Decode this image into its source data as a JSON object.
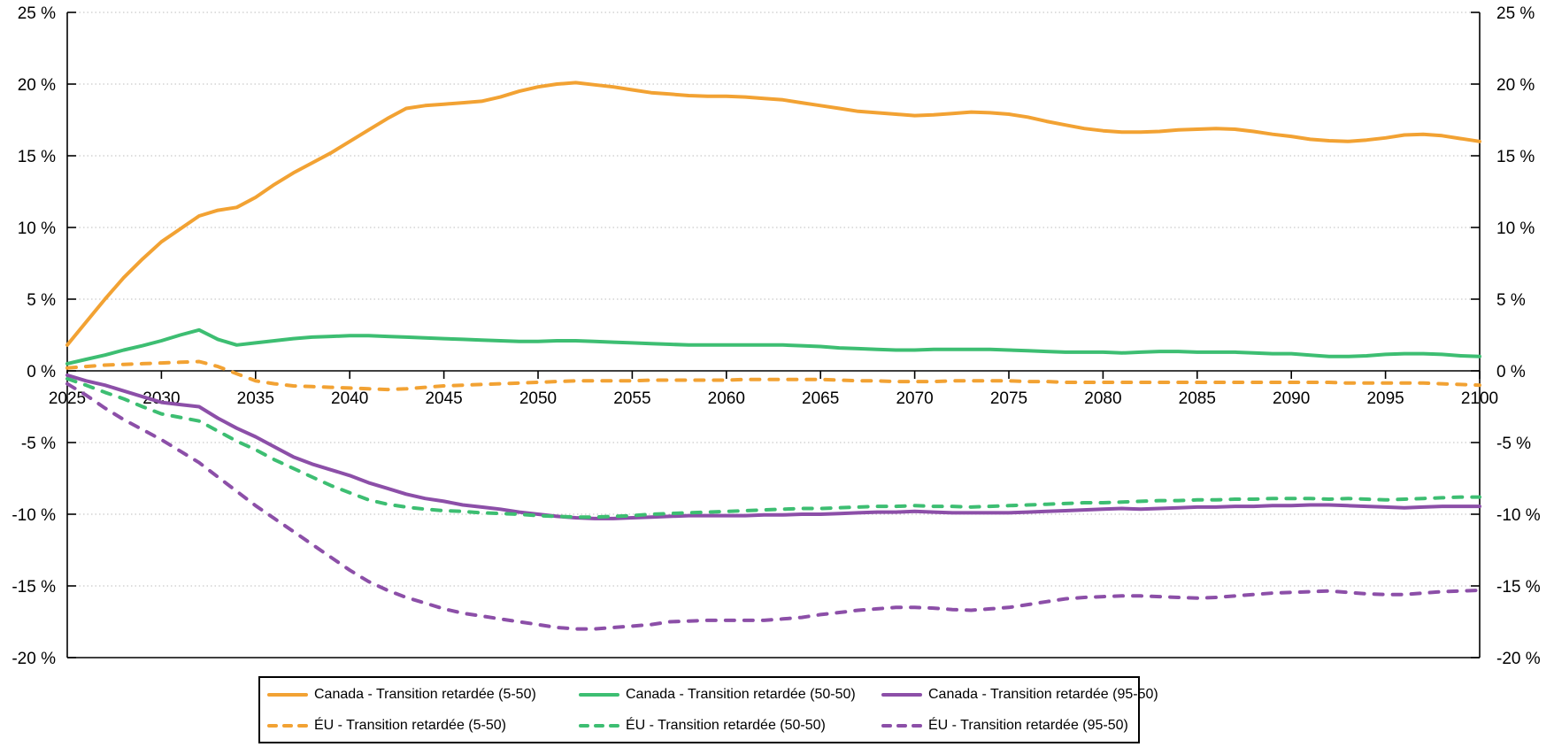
{
  "chart_data": {
    "type": "line",
    "title": "",
    "xlabel": "",
    "ylabel": "",
    "ylim": [
      -20,
      25
    ],
    "ytick_step": 5,
    "ytick_format": "{v} %",
    "ytick_labels": [
      "25 %",
      "20 %",
      "15 %",
      "10 %",
      "5 %",
      "0 %",
      "-5 %",
      "-10 %",
      "-15 %",
      "-20 %"
    ],
    "xticks": [
      2025,
      2030,
      2035,
      2040,
      2045,
      2050,
      2055,
      2060,
      2065,
      2070,
      2075,
      2080,
      2085,
      2090,
      2095,
      2100
    ],
    "grid": "dotted-horizontal",
    "zero_axis": true,
    "legend_position": "bottom",
    "years": [
      2025,
      2026,
      2027,
      2028,
      2029,
      2030,
      2031,
      2032,
      2033,
      2034,
      2035,
      2036,
      2037,
      2038,
      2039,
      2040,
      2041,
      2042,
      2043,
      2044,
      2045,
      2046,
      2047,
      2048,
      2049,
      2050,
      2051,
      2052,
      2053,
      2054,
      2055,
      2056,
      2057,
      2058,
      2059,
      2060,
      2061,
      2062,
      2063,
      2064,
      2065,
      2066,
      2067,
      2068,
      2069,
      2070,
      2071,
      2072,
      2073,
      2074,
      2075,
      2076,
      2077,
      2078,
      2079,
      2080,
      2081,
      2082,
      2083,
      2084,
      2085,
      2086,
      2087,
      2088,
      2089,
      2090,
      2091,
      2092,
      2093,
      2094,
      2095,
      2096,
      2097,
      2098,
      2099,
      2100
    ],
    "series": [
      {
        "key": "canada-5-50",
        "name": "Canada - Transition retardée (5-50)",
        "color": "#F2A233",
        "dash": false,
        "values": [
          1.8,
          3.4,
          5.0,
          6.5,
          7.8,
          9.0,
          9.9,
          10.8,
          11.2,
          11.4,
          12.1,
          13.0,
          13.8,
          14.5,
          15.2,
          16.0,
          16.8,
          17.6,
          18.3,
          18.5,
          18.6,
          18.7,
          18.8,
          19.1,
          19.5,
          19.8,
          20.0,
          20.1,
          19.95,
          19.8,
          19.6,
          19.4,
          19.3,
          19.2,
          19.15,
          19.15,
          19.1,
          19.0,
          18.9,
          18.7,
          18.5,
          18.3,
          18.1,
          18.0,
          17.9,
          17.8,
          17.85,
          17.95,
          18.05,
          18.0,
          17.9,
          17.7,
          17.4,
          17.15,
          16.9,
          16.75,
          16.65,
          16.65,
          16.7,
          16.8,
          16.85,
          16.9,
          16.85,
          16.7,
          16.5,
          16.35,
          16.15,
          16.05,
          16.0,
          16.1,
          16.25,
          16.45,
          16.5,
          16.4,
          16.2,
          16.0
        ]
      },
      {
        "key": "canada-50-50",
        "name": "Canada - Transition retardée (50-50)",
        "color": "#3DBE72",
        "dash": false,
        "values": [
          0.5,
          0.8,
          1.1,
          1.45,
          1.75,
          2.1,
          2.5,
          2.85,
          2.2,
          1.8,
          1.95,
          2.1,
          2.25,
          2.35,
          2.4,
          2.45,
          2.45,
          2.4,
          2.35,
          2.3,
          2.25,
          2.2,
          2.15,
          2.1,
          2.05,
          2.05,
          2.1,
          2.1,
          2.05,
          2.0,
          1.95,
          1.9,
          1.85,
          1.8,
          1.8,
          1.8,
          1.8,
          1.8,
          1.8,
          1.75,
          1.7,
          1.6,
          1.55,
          1.5,
          1.45,
          1.45,
          1.5,
          1.5,
          1.5,
          1.5,
          1.45,
          1.4,
          1.35,
          1.3,
          1.3,
          1.3,
          1.25,
          1.3,
          1.35,
          1.35,
          1.3,
          1.3,
          1.3,
          1.25,
          1.2,
          1.2,
          1.1,
          1.0,
          1.0,
          1.05,
          1.15,
          1.2,
          1.2,
          1.15,
          1.05,
          1.0
        ]
      },
      {
        "key": "canada-95-50",
        "name": "Canada - Transition retardée (95-50)",
        "color": "#8C4FA8",
        "dash": false,
        "values": [
          -0.3,
          -0.7,
          -1.0,
          -1.4,
          -1.8,
          -2.2,
          -2.35,
          -2.5,
          -3.3,
          -4.0,
          -4.6,
          -5.3,
          -6.0,
          -6.5,
          -6.9,
          -7.3,
          -7.8,
          -8.2,
          -8.6,
          -8.9,
          -9.1,
          -9.35,
          -9.5,
          -9.65,
          -9.85,
          -10.0,
          -10.15,
          -10.25,
          -10.3,
          -10.3,
          -10.25,
          -10.2,
          -10.15,
          -10.1,
          -10.1,
          -10.1,
          -10.1,
          -10.05,
          -10.05,
          -10.0,
          -10.0,
          -9.95,
          -9.9,
          -9.85,
          -9.85,
          -9.8,
          -9.85,
          -9.9,
          -9.9,
          -9.9,
          -9.9,
          -9.85,
          -9.8,
          -9.75,
          -9.7,
          -9.65,
          -9.6,
          -9.65,
          -9.6,
          -9.55,
          -9.5,
          -9.5,
          -9.45,
          -9.45,
          -9.4,
          -9.4,
          -9.35,
          -9.35,
          -9.4,
          -9.45,
          -9.5,
          -9.55,
          -9.5,
          -9.45,
          -9.45,
          -9.45
        ]
      },
      {
        "key": "eu-5-50",
        "name": "ÉU - Transition retardée (5-50)",
        "color": "#F2A233",
        "dash": true,
        "values": [
          0.2,
          0.3,
          0.4,
          0.45,
          0.5,
          0.55,
          0.6,
          0.65,
          0.3,
          -0.2,
          -0.7,
          -0.9,
          -1.05,
          -1.1,
          -1.15,
          -1.2,
          -1.25,
          -1.3,
          -1.25,
          -1.15,
          -1.05,
          -1.0,
          -0.95,
          -0.9,
          -0.85,
          -0.8,
          -0.75,
          -0.7,
          -0.7,
          -0.7,
          -0.7,
          -0.65,
          -0.65,
          -0.65,
          -0.65,
          -0.65,
          -0.6,
          -0.6,
          -0.6,
          -0.6,
          -0.6,
          -0.65,
          -0.7,
          -0.7,
          -0.75,
          -0.75,
          -0.75,
          -0.7,
          -0.7,
          -0.7,
          -0.7,
          -0.75,
          -0.75,
          -0.8,
          -0.8,
          -0.8,
          -0.8,
          -0.8,
          -0.8,
          -0.8,
          -0.8,
          -0.8,
          -0.8,
          -0.8,
          -0.8,
          -0.8,
          -0.8,
          -0.8,
          -0.85,
          -0.85,
          -0.85,
          -0.85,
          -0.85,
          -0.9,
          -0.95,
          -1.0
        ]
      },
      {
        "key": "eu-50-50",
        "name": "ÉU - Transition retardée (50-50)",
        "color": "#3DBE72",
        "dash": true,
        "values": [
          -0.55,
          -1.0,
          -1.5,
          -1.95,
          -2.5,
          -3.0,
          -3.25,
          -3.5,
          -4.2,
          -4.9,
          -5.5,
          -6.2,
          -6.8,
          -7.4,
          -8.0,
          -8.5,
          -9.0,
          -9.3,
          -9.5,
          -9.65,
          -9.75,
          -9.8,
          -9.9,
          -9.95,
          -10.0,
          -10.1,
          -10.15,
          -10.2,
          -10.2,
          -10.15,
          -10.1,
          -10.0,
          -9.95,
          -9.9,
          -9.85,
          -9.8,
          -9.75,
          -9.7,
          -9.65,
          -9.6,
          -9.6,
          -9.55,
          -9.5,
          -9.45,
          -9.45,
          -9.4,
          -9.45,
          -9.45,
          -9.5,
          -9.45,
          -9.4,
          -9.35,
          -9.3,
          -9.25,
          -9.2,
          -9.2,
          -9.15,
          -9.1,
          -9.05,
          -9.05,
          -9.0,
          -9.0,
          -8.95,
          -8.95,
          -8.9,
          -8.9,
          -8.9,
          -8.95,
          -8.9,
          -8.95,
          -9.0,
          -8.95,
          -8.9,
          -8.85,
          -8.8,
          -8.8
        ]
      },
      {
        "key": "eu-95-50",
        "name": "ÉU - Transition retardée (95-50)",
        "color": "#8C4FA8",
        "dash": true,
        "values": [
          -0.9,
          -1.7,
          -2.6,
          -3.4,
          -4.1,
          -4.8,
          -5.6,
          -6.4,
          -7.4,
          -8.4,
          -9.4,
          -10.3,
          -11.2,
          -12.1,
          -13.0,
          -13.9,
          -14.7,
          -15.3,
          -15.8,
          -16.2,
          -16.6,
          -16.9,
          -17.1,
          -17.3,
          -17.5,
          -17.7,
          -17.9,
          -18.0,
          -18.0,
          -17.9,
          -17.8,
          -17.7,
          -17.5,
          -17.45,
          -17.4,
          -17.4,
          -17.4,
          -17.4,
          -17.3,
          -17.2,
          -17.0,
          -16.85,
          -16.7,
          -16.6,
          -16.5,
          -16.5,
          -16.55,
          -16.65,
          -16.7,
          -16.6,
          -16.5,
          -16.3,
          -16.1,
          -15.9,
          -15.8,
          -15.75,
          -15.7,
          -15.7,
          -15.75,
          -15.8,
          -15.85,
          -15.8,
          -15.7,
          -15.6,
          -15.5,
          -15.45,
          -15.4,
          -15.35,
          -15.45,
          -15.55,
          -15.6,
          -15.6,
          -15.5,
          -15.4,
          -15.35,
          -15.3
        ]
      }
    ]
  },
  "legend": {
    "items": [
      {
        "key": "canada-5-50",
        "label": "Canada - Transition retardée (5-50)",
        "color": "#F2A233",
        "dash": false
      },
      {
        "key": "canada-50-50",
        "label": "Canada - Transition retardée (50-50)",
        "color": "#3DBE72",
        "dash": false
      },
      {
        "key": "canada-95-50",
        "label": "Canada - Transition retardée (95-50)",
        "color": "#8C4FA8",
        "dash": false
      },
      {
        "key": "eu-5-50",
        "label": "ÉU - Transition retardée (5-50)",
        "color": "#F2A233",
        "dash": true
      },
      {
        "key": "eu-50-50",
        "label": "ÉU - Transition retardée (50-50)",
        "color": "#3DBE72",
        "dash": true
      },
      {
        "key": "eu-95-50",
        "label": "ÉU - Transition retardée (95-50)",
        "color": "#8C4FA8",
        "dash": true
      }
    ]
  },
  "style_colors": {
    "grid": "#bdbdbd",
    "axis": "#000000",
    "text": "#000000",
    "background": "#ffffff"
  }
}
